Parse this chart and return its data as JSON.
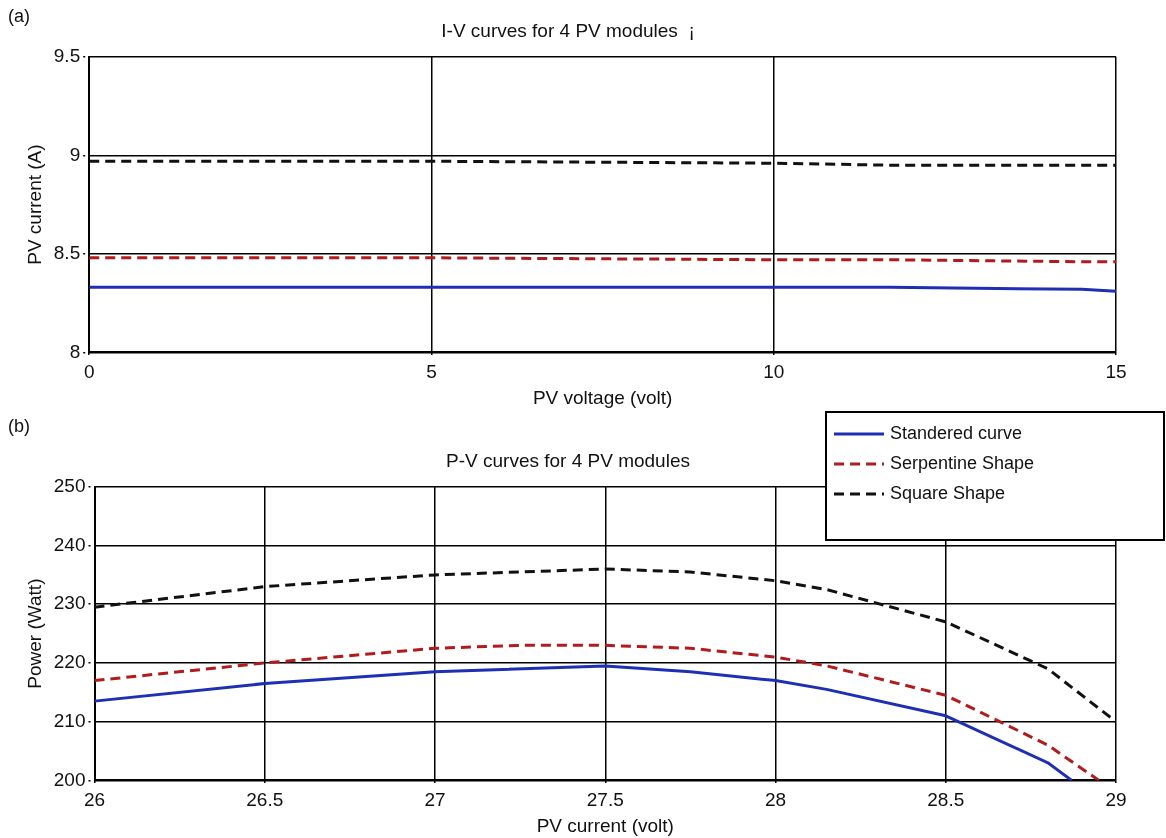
{
  "chart_data": [
    {
      "type": "line",
      "title": "I-V curves for 4 PV modules  ¡",
      "xlabel": "PV voltage (volt)",
      "ylabel": "PV current (A)",
      "annotations": [
        "(a)"
      ],
      "xlim": [
        0,
        15
      ],
      "xticks": [
        0,
        5,
        10,
        15
      ],
      "ylim": [
        8,
        9.5
      ],
      "yticks": [
        8,
        8.5,
        9,
        9.5
      ],
      "grid": true,
      "legend": false,
      "marker": "none",
      "series": [
        {
          "color": "#1f2fb4",
          "line_style": "solid",
          "x": [
            0,
            5,
            10,
            11.7,
            14.5,
            15
          ],
          "values": [
            8.33,
            8.33,
            8.33,
            8.33,
            8.32,
            8.31
          ]
        },
        {
          "color": "#b01c1c",
          "line_style": "dashed",
          "x": [
            0,
            5,
            10,
            11.7,
            14.5,
            15
          ],
          "values": [
            8.48,
            8.48,
            8.47,
            8.47,
            8.46,
            8.46
          ]
        },
        {
          "color": "#111111",
          "line_style": "dashed",
          "x": [
            0,
            5,
            10,
            11.7,
            14.5,
            15
          ],
          "values": [
            8.97,
            8.97,
            8.96,
            8.95,
            8.95,
            8.95
          ]
        }
      ]
    },
    {
      "type": "line",
      "title": "P-V curves for 4 PV modules",
      "xlabel": "PV current (volt)",
      "ylabel": "Power (Watt)",
      "annotations": [
        "(b)"
      ],
      "xlim": [
        26,
        29
      ],
      "xticks": [
        26,
        26.5,
        27,
        27.5,
        28,
        28.5,
        29
      ],
      "ylim": [
        200,
        250
      ],
      "yticks": [
        200,
        210,
        220,
        230,
        240,
        250
      ],
      "grid": true,
      "legend": "top right",
      "marker": "none",
      "series": [
        {
          "name": "Standered curve",
          "color": "#1f2fb4",
          "line_style": "solid",
          "x": [
            26,
            26.5,
            27,
            27.5,
            27.75,
            28,
            28.15,
            28.5,
            28.8,
            28.87
          ],
          "values": [
            213.5,
            216.5,
            218.5,
            219.5,
            218.5,
            217,
            215.5,
            211,
            203,
            200
          ]
        },
        {
          "name": "Serpentine Shape",
          "color": "#b01c1c",
          "line_style": "dashed",
          "x": [
            26,
            26.5,
            27,
            27.25,
            27.5,
            27.75,
            28,
            28.15,
            28.5,
            28.8,
            28.95
          ],
          "values": [
            217,
            220,
            222.5,
            223,
            223,
            222.5,
            221,
            219.5,
            214.5,
            206,
            200
          ]
        },
        {
          "name": "Square Shape",
          "color": "#111111",
          "line_style": "dashed",
          "x": [
            26,
            26.5,
            27,
            27.5,
            27.75,
            28,
            28.15,
            28.5,
            28.8,
            29
          ],
          "values": [
            229.5,
            233,
            235,
            236,
            235.5,
            234,
            232.5,
            227,
            219,
            210
          ]
        }
      ]
    }
  ]
}
